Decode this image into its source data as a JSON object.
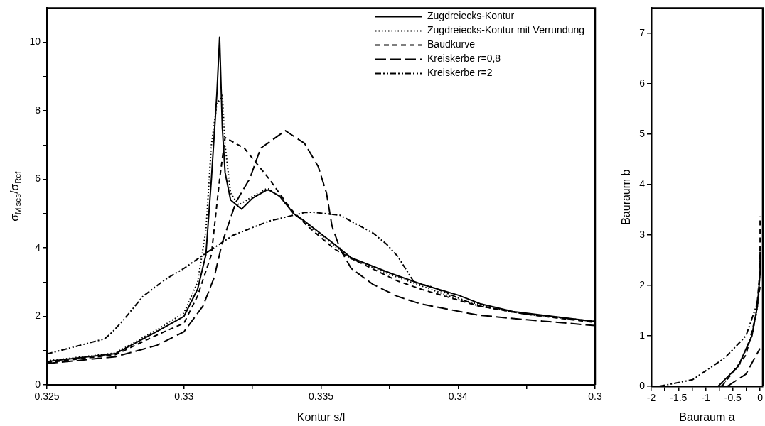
{
  "chart_data": [
    {
      "type": "line",
      "xlabel": "Kontur s/l",
      "ylabel": "σ$_{Mises}$/σ$_{Ref}$",
      "legend": "top right",
      "xlim": [
        0.325,
        0.345
      ],
      "xticks": [
        0.325,
        {
          "value": 0.3275,
          "label": null
        },
        0.33,
        {
          "value": 0.3325,
          "label": null
        },
        0.335,
        {
          "value": 0.3375,
          "label": null
        },
        0.34,
        {
          "value": 0.3425,
          "label": null
        },
        {
          "value": 0.345,
          "label": "0.3"
        }
      ],
      "ylim": [
        0,
        11
      ],
      "yticks": [
        0,
        {
          "value": 1,
          "label": null
        },
        2,
        {
          "value": 3,
          "label": null
        },
        4,
        {
          "value": 5,
          "label": null
        },
        6,
        {
          "value": 7,
          "label": null
        },
        8,
        {
          "value": 9,
          "label": null
        },
        10
      ],
      "series": [
        {
          "name": "Zugdreiecks-Kontur",
          "color": "#000000",
          "line_style": "solid",
          "x": [
            0.325,
            0.3275,
            0.329,
            0.33,
            0.3305,
            0.3308,
            0.331,
            0.3312,
            0.3313,
            0.3314,
            0.3315,
            0.3317,
            0.3321,
            0.3325,
            0.333,
            0.3331,
            0.3335,
            0.334,
            0.3344,
            0.3355,
            0.3361,
            0.3376,
            0.3387,
            0.34,
            0.3408,
            0.342,
            0.345
          ],
          "values": [
            0.68,
            0.91,
            1.55,
            2.0,
            2.8,
            3.8,
            6.0,
            8.5,
            10.15,
            7.5,
            6.2,
            5.4,
            5.13,
            5.45,
            5.68,
            5.69,
            5.5,
            5.0,
            4.78,
            4.1,
            3.71,
            3.24,
            2.93,
            2.62,
            2.37,
            2.14,
            1.85
          ]
        },
        {
          "name": "Zugdreiecks-Kontur mit Verrundung",
          "color": "#000000",
          "line_style": "dotted",
          "x": [
            0.325,
            0.3275,
            0.329,
            0.33,
            0.3305,
            0.3308,
            0.331,
            0.3312,
            0.3314,
            0.3315,
            0.3317,
            0.332,
            0.3325,
            0.333,
            0.3331,
            0.3335,
            0.334,
            0.3344,
            0.3355,
            0.3361,
            0.3376,
            0.3387,
            0.34,
            0.342,
            0.345
          ],
          "values": [
            0.7,
            0.93,
            1.6,
            2.1,
            3.0,
            4.5,
            7.0,
            8.2,
            8.45,
            7.0,
            5.6,
            5.25,
            5.5,
            5.72,
            5.72,
            5.5,
            5.0,
            4.75,
            4.05,
            3.68,
            3.2,
            2.88,
            2.5,
            2.12,
            1.85
          ]
        },
        {
          "name": "Baudkurve",
          "color": "#000000",
          "line_style": "dashed",
          "x": [
            0.325,
            0.3275,
            0.329,
            0.33,
            0.3305,
            0.331,
            0.3313,
            0.3315,
            0.3322,
            0.3331,
            0.3339,
            0.3345,
            0.3355,
            0.3361,
            0.3378,
            0.3387,
            0.3407,
            0.3425,
            0.345
          ],
          "values": [
            0.65,
            0.88,
            1.45,
            1.8,
            2.6,
            3.8,
            6.0,
            7.22,
            6.91,
            6.02,
            5.13,
            4.64,
            3.96,
            3.69,
            3.03,
            2.78,
            2.31,
            2.06,
            1.82
          ]
        },
        {
          "name": "Kreiskerbe r=0,8",
          "color": "#000000",
          "line_style": "long_dashed",
          "x": [
            0.325,
            0.3275,
            0.329,
            0.33,
            0.3307,
            0.3311,
            0.3314,
            0.3319,
            0.3324,
            0.3328,
            0.3337,
            0.3344,
            0.3349,
            0.3352,
            0.3354,
            0.3357,
            0.3361,
            0.3369,
            0.3378,
            0.3386,
            0.3407,
            0.3425,
            0.345
          ],
          "values": [
            0.62,
            0.82,
            1.15,
            1.55,
            2.31,
            3.13,
            4.16,
            5.34,
            6.02,
            6.91,
            7.42,
            7.05,
            6.37,
            5.6,
            4.64,
            3.96,
            3.4,
            2.93,
            2.58,
            2.37,
            2.04,
            1.9,
            1.73
          ]
        },
        {
          "name": "Kreiskerbe r=2",
          "color": "#000000",
          "line_style": "dash_dot_dot",
          "x": [
            0.325,
            0.3271,
            0.3274,
            0.3278,
            0.3285,
            0.3293,
            0.33,
            0.3309,
            0.3318,
            0.3331,
            0.3344,
            0.3347,
            0.3357,
            0.3369,
            0.3374,
            0.3378,
            0.3384,
            0.339,
            0.3407,
            0.3425,
            0.345
          ],
          "values": [
            0.9,
            1.34,
            1.55,
            1.9,
            2.58,
            3.07,
            3.4,
            3.9,
            4.37,
            4.78,
            5.03,
            5.04,
            4.95,
            4.43,
            4.1,
            3.75,
            2.99,
            2.87,
            2.31,
            2.06,
            1.85
          ]
        }
      ]
    },
    {
      "type": "line",
      "xlabel": "Bauraum a",
      "ylabel": "Bauraum b",
      "xlim": [
        -2,
        0.05
      ],
      "xticks": [
        -2,
        {
          "value": -1.75,
          "label": null
        },
        -1.5,
        {
          "value": -1.25,
          "label": null
        },
        -1,
        {
          "value": -0.75,
          "label": null
        },
        -0.5,
        {
          "value": -0.25,
          "label": null
        },
        0
      ],
      "ylim": [
        0,
        7.5
      ],
      "yticks": [
        0,
        1,
        2,
        3,
        4,
        5,
        6,
        7
      ],
      "series": [
        {
          "color": "#000000",
          "line_style": "solid",
          "x": [
            -0.77,
            -0.4,
            -0.15,
            -0.05,
            0,
            0
          ],
          "values": [
            0,
            0.4,
            1.0,
            1.59,
            2.24,
            2.67
          ]
        },
        {
          "color": "#000000",
          "line_style": "dotted",
          "x": [
            -0.72,
            -0.38,
            -0.14,
            -0.04,
            0,
            0
          ],
          "values": [
            0,
            0.42,
            1.05,
            1.65,
            2.3,
            2.6
          ]
        },
        {
          "color": "#000000",
          "line_style": "dashed",
          "x": [
            -0.7,
            -0.26,
            -0.07,
            -0.01,
            0,
            0
          ],
          "values": [
            0,
            0.62,
            1.43,
            2.2,
            2.8,
            3.37
          ]
        },
        {
          "color": "#000000",
          "line_style": "long_dashed",
          "x": [
            -0.6,
            -0.26,
            -0.07,
            0
          ],
          "values": [
            0,
            0.24,
            0.62,
            0.75
          ]
        },
        {
          "color": "#000000",
          "line_style": "dash_dot_dot",
          "x": [
            -1.85,
            -1.24,
            -0.65,
            -0.26,
            -0.06,
            0
          ],
          "values": [
            0,
            0.13,
            0.56,
            1.0,
            1.62,
            1.97
          ]
        }
      ]
    }
  ]
}
